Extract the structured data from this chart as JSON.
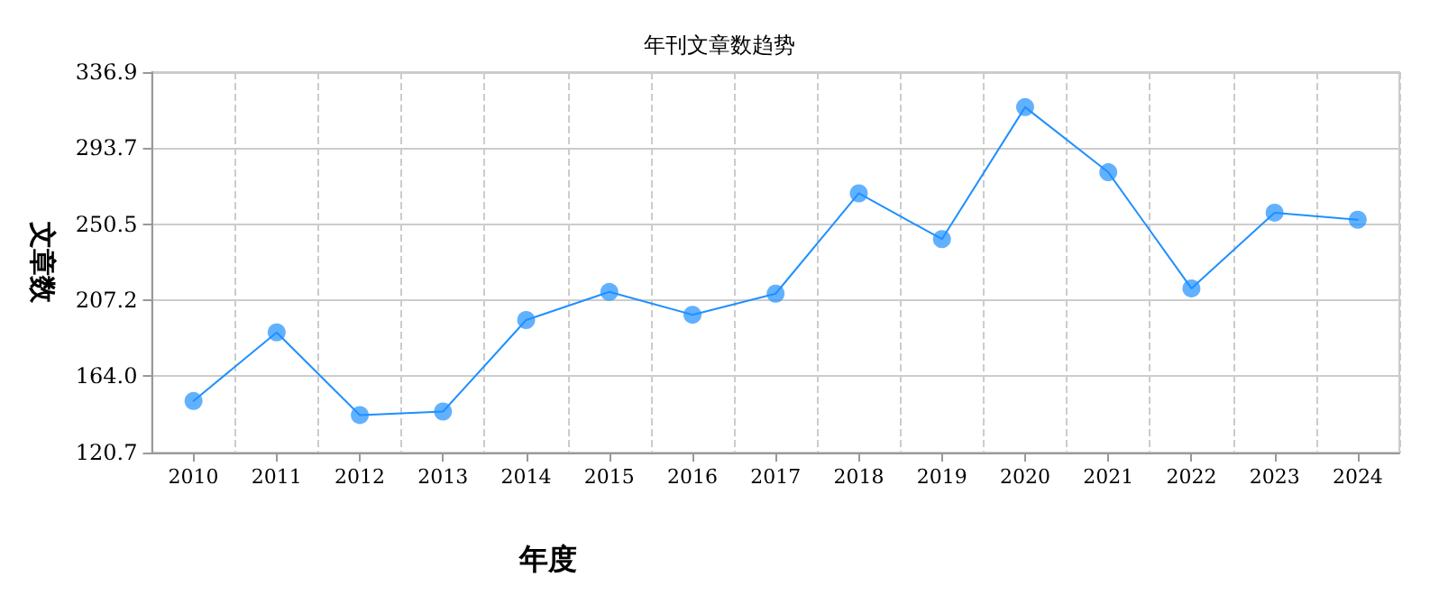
{
  "chart_data": {
    "type": "line",
    "title": "年刊文章数趋势",
    "xlabel": "年度",
    "ylabel": "文章数",
    "categories": [
      "2010",
      "2011",
      "2012",
      "2013",
      "2014",
      "2015",
      "2016",
      "2017",
      "2018",
      "2019",
      "2020",
      "2021",
      "2022",
      "2023",
      "2024"
    ],
    "series": [
      {
        "color": "#1e90ff",
        "values": [
          150,
          189,
          142,
          144,
          196,
          212,
          199,
          211,
          268,
          242,
          317,
          280,
          214,
          257,
          253
        ]
      }
    ],
    "ylim": [
      120.7,
      336.9
    ],
    "yticks": [
      120.7,
      {
        "value": 164,
        "label": "164.0"
      },
      207.2,
      250.5,
      293.7,
      336.9
    ],
    "grid": true,
    "marker": "circle",
    "line_style": "solid"
  }
}
